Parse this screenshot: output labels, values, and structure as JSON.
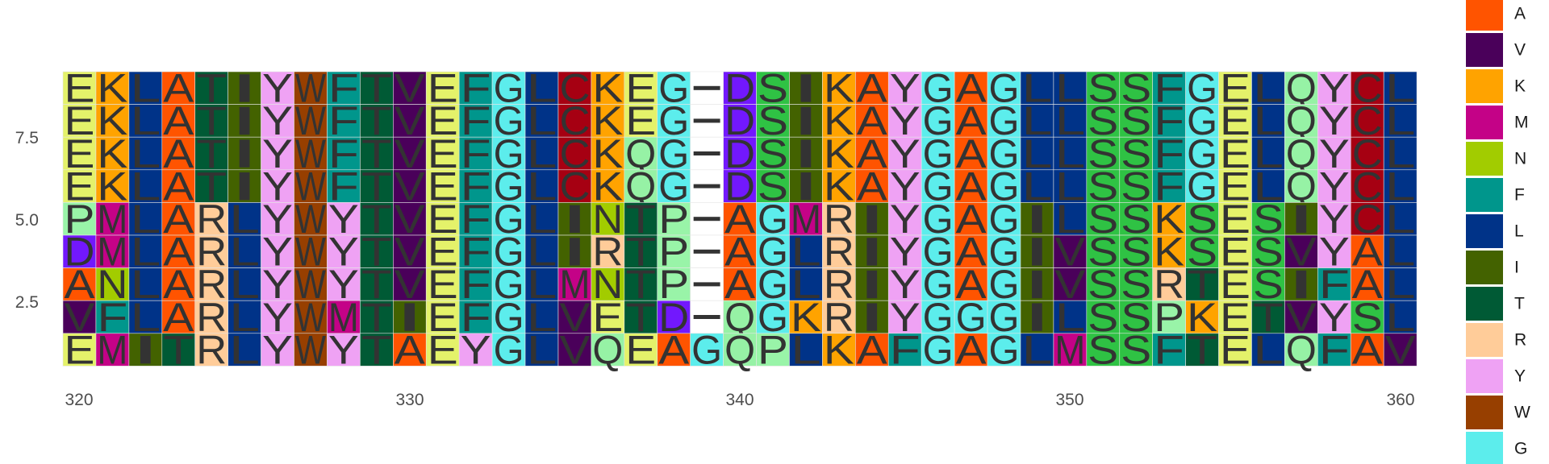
{
  "chart_data": {
    "type": "heatmap",
    "x_ticks": [
      "320",
      "330",
      "340",
      "350",
      "360"
    ],
    "y_ticks": [
      "7.5",
      "5.0",
      "2.5"
    ],
    "x_range": [
      320,
      360
    ],
    "y_range": [
      1,
      9
    ],
    "start_position": 320,
    "rows": [
      "EKLATIYWFTVEFGLCKEG-DSIKAYGAGLLSSFGELQYCL",
      "EKLATIYWFTVEFGLCKEG-DSIKAYGAGLLSSFGELQYCL",
      "EKLATIYWFTVEFGLCKQG-DSIKAYGAGLLSSFGELQYCL",
      "EKLATIYWFTVEFGLCKQG-DSIKAYGAGLLSSFGELQYCL",
      "PMLARLYWYTVEFGLINTP-AGMRIYGAGILSSKSESIYCL",
      "DMLARLYWYTVEFGLIRTP-AGLRIYGAGIVSSKSESVYAL",
      "ANLARLYWYTVEFGLMNTP-AGLRIYGAGIVSSRTESIFAL",
      "VFLARLYWMTIEFGLVETD-QGKRIYGGGILSSPKETVYSL",
      "EMITRLYWYTAEYGLVQEAGQPLKAFGAGLMSSFTELQFAV"
    ],
    "legend": [
      {
        "label": "A",
        "color": "#FF5400"
      },
      {
        "label": "V",
        "color": "#4A005A"
      },
      {
        "label": "K",
        "color": "#FFA300"
      },
      {
        "label": "M",
        "color": "#C40287"
      },
      {
        "label": "N",
        "color": "#A2CC00"
      },
      {
        "label": "F",
        "color": "#00968C"
      },
      {
        "label": "L",
        "color": "#003388"
      },
      {
        "label": "I",
        "color": "#436200"
      },
      {
        "label": "T",
        "color": "#005A35"
      },
      {
        "label": "R",
        "color": "#FFCC99"
      },
      {
        "label": "Y",
        "color": "#EFA2F4"
      },
      {
        "label": "W",
        "color": "#973F00"
      },
      {
        "label": "G",
        "color": "#5CEDEC"
      }
    ],
    "other_colors": {
      "E": "#E4F26A",
      "S": "#2FC244",
      "C": "#A60012",
      "D": "#7218FD",
      "Q": "#96F2A5",
      "P": "#99F4A8",
      "-": "#FFFFFF"
    }
  }
}
